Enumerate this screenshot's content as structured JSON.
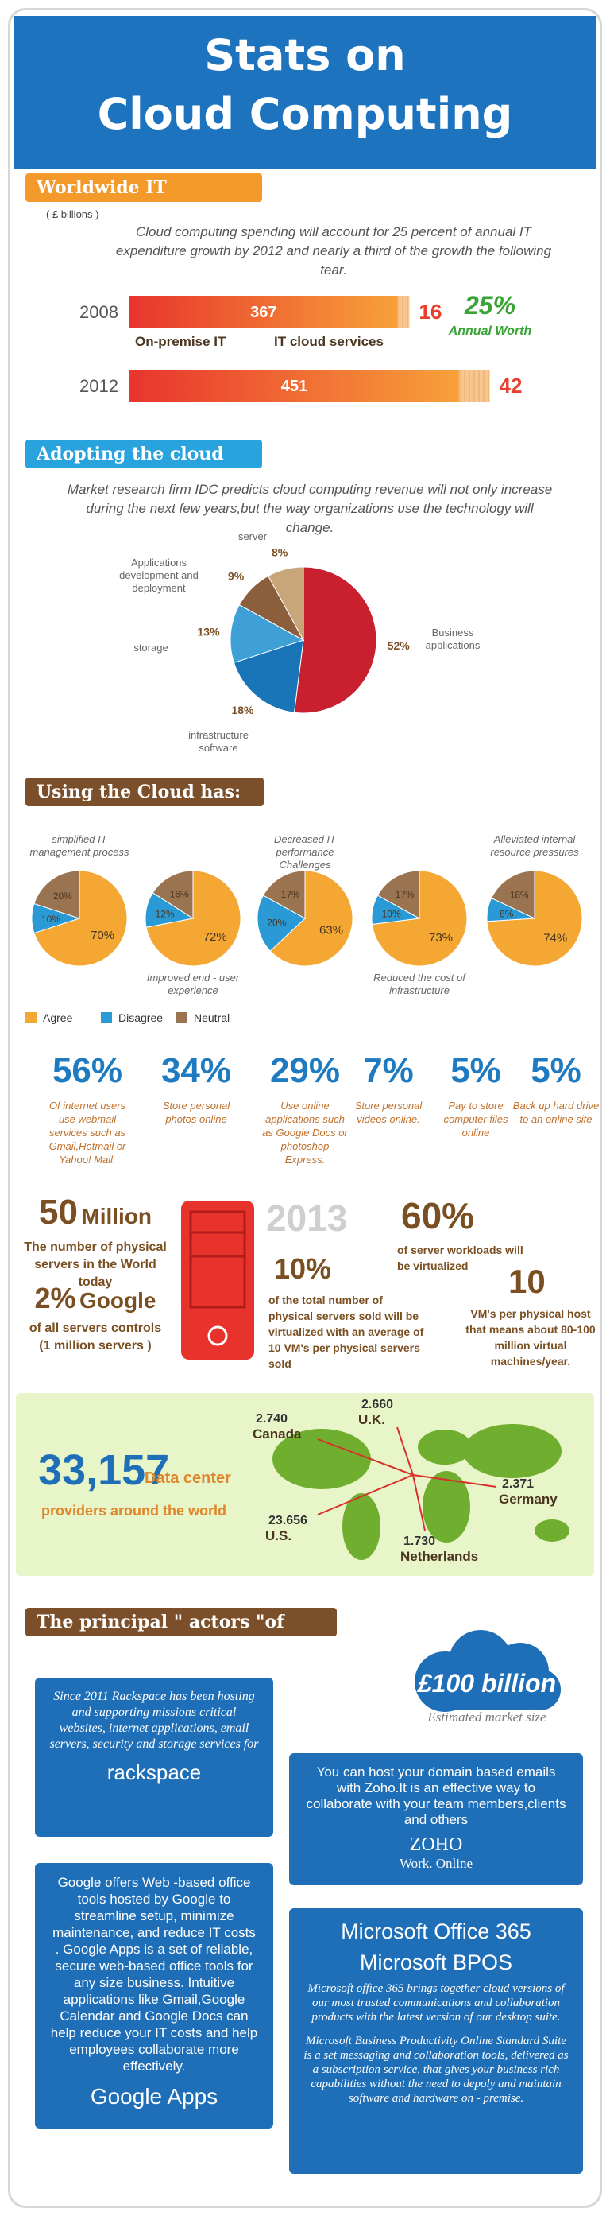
{
  "header": {
    "title_line1": "Stats on",
    "title_line2": "Cloud Computing"
  },
  "spending": {
    "label": "Worldwide IT spending",
    "unit": "( £ billions )",
    "text": "Cloud computing spending will account for 25 percent of annual IT expenditure growth by 2012 and nearly a third of the growth the following tear.",
    "rows": [
      {
        "year": "2008",
        "on_premise": 367,
        "cloud": 16
      },
      {
        "year": "2012",
        "on_premise": 451,
        "cloud": 42
      }
    ],
    "legend_on_premise": "On-premise IT",
    "legend_cloud": "IT cloud services",
    "growth": "25%",
    "growth_label": "Annual Worth"
  },
  "adopting": {
    "label": "Adopting the cloud",
    "text": "Market research firm IDC predicts cloud computing revenue will not only increase during the next few years,but the way organizations use the technology will change.",
    "slices": [
      {
        "name": "Business applications",
        "value": 52,
        "label": "52%",
        "color": "#c8202f"
      },
      {
        "name": "infrastructure software",
        "value": 18,
        "label": "18%",
        "color": "#1a74b8"
      },
      {
        "name": "storage",
        "value": 13,
        "label": "13%",
        "color": "#3fa0d8"
      },
      {
        "name": "Applications development and deployment",
        "value": 9,
        "label": "9%",
        "color": "#8b5e3c"
      },
      {
        "name": "server",
        "value": 8,
        "label": "8%",
        "color": "#c9a57a"
      }
    ]
  },
  "using": {
    "label": "Using the Cloud has:",
    "legend": [
      {
        "name": "Agree",
        "color": "#f5a733"
      },
      {
        "name": "Disagree",
        "color": "#2a9ad6"
      },
      {
        "name": "Neutral",
        "color": "#9a7350"
      }
    ],
    "pies": [
      {
        "caption": "simplified IT management process",
        "values": [
          70,
          10,
          20
        ],
        "value_labels": [
          "70%",
          "10%",
          "20%"
        ]
      },
      {
        "caption": "Improved end - user experience",
        "values": [
          72,
          12,
          16
        ],
        "value_labels": [
          "72%",
          "12%",
          "16%"
        ]
      },
      {
        "caption": "Decreased IT performance Challenges",
        "values": [
          63,
          20,
          17
        ],
        "value_labels": [
          "63%",
          "20%",
          "17%"
        ]
      },
      {
        "caption": "Reduced the cost of infrastructure",
        "values": [
          73,
          10,
          17
        ],
        "value_labels": [
          "73%",
          "10%",
          "17%"
        ]
      },
      {
        "caption": "Alleviated internal resource pressures",
        "values": [
          74,
          8,
          18
        ],
        "value_labels": [
          "74%",
          "8%",
          "18%"
        ]
      }
    ]
  },
  "stats": [
    {
      "value": "56%",
      "text": "Of internet users use webmail services such as Gmail,Hotmail or Yahoo! Mail."
    },
    {
      "value": "34%",
      "text": "Store personal photos online"
    },
    {
      "value": "29%",
      "text": "Use online applications such as Google Docs or photoshop Express."
    },
    {
      "value": "7%",
      "text": "Store personal videos online."
    },
    {
      "value": "5%",
      "text": "Pay to store computer files online"
    },
    {
      "value": "5%",
      "text": "Back up hard drive to an online site"
    }
  ],
  "servers": {
    "count": "50",
    "count_unit": "Million",
    "count_text": "The number of physical servers in the World today",
    "google_pct": "2%",
    "google_name": "Google",
    "google_text": "of all servers controls (1 million servers )",
    "year": "2013",
    "virt_pct": "10%",
    "virt_text": "of the total number of physical servers sold will be virtualized with an average of 10 VM's per physical servers sold",
    "workload_pct": "60%",
    "workload_text": "of server workloads will be virtualized",
    "vm_count": "10",
    "vm_text": "VM's per physical host that means about 80-100 million virtual machines/year."
  },
  "datacenters": {
    "total": "33,157",
    "total_label": "Data center",
    "total_text": "providers around the world",
    "locations": [
      {
        "value": "2.740",
        "name": "Canada"
      },
      {
        "value": "2.660",
        "name": "U.K."
      },
      {
        "value": "2.371",
        "name": "Germany"
      },
      {
        "value": "23.656",
        "name": "U.S."
      },
      {
        "value": "1.730",
        "name": "Netherlands"
      }
    ]
  },
  "actors": {
    "label": "The principal \" actors \"of cloud",
    "market": "£100 billion",
    "market_label": "Estimated market size",
    "rackspace": {
      "text": "Since 2011 Rackspace has been hosting and supporting missions critical websites, internet applications, email servers, security and storage services for",
      "brand": "rackspace"
    },
    "zoho": {
      "text": "You can host your domain based emails with Zoho.It is an effective way to collaborate with your team members,clients and others",
      "brand": "ZOHO",
      "tagline": "Work. Online"
    },
    "google": {
      "text": "Google offers  Web -based office tools hosted by Google to streamline setup, minimize maintenance, and reduce IT costs . Google Apps is a set of reliable, secure web-based office tools for any size business. Intuitive applications like Gmail,Google Calendar and Google Docs can help reduce your IT costs and help employees collaborate more effectively.",
      "brand": "Google Apps"
    },
    "microsoft": {
      "title1": "Microsoft Office 365",
      "title2": "Microsoft  BPOS",
      "text1": "Microsoft office 365 brings together cloud versions of our most trusted communications and collaboration products with the latest version of our desktop suite.",
      "text2": "Microsoft Business Productivity Online Standard Suite is a set messaging and collaboration tools, delivered as a subscription service, that gives your business rich capabilities without the need to depoly  and maintain software and hardware on - premise."
    }
  }
}
